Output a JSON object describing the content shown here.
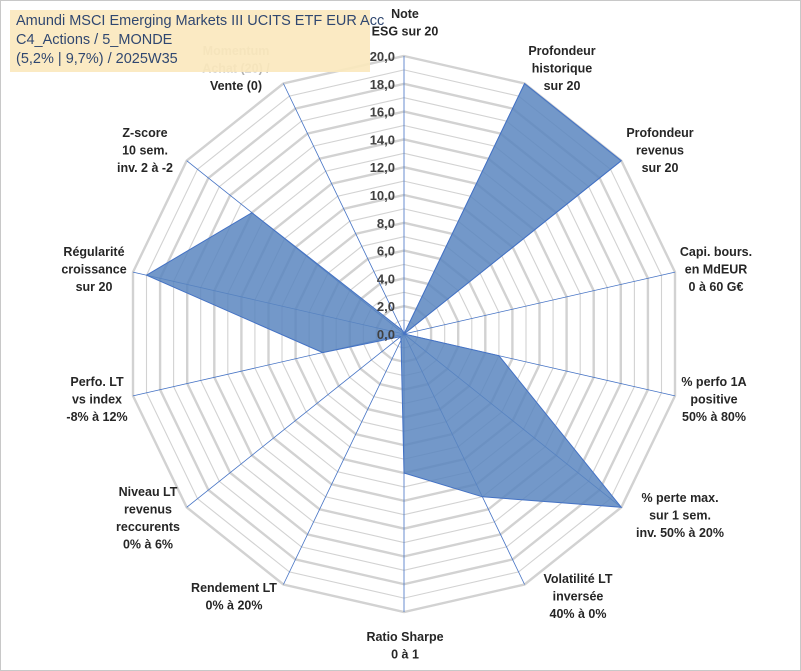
{
  "info": {
    "line1": "Amundi MSCI Emerging Markets III UCITS ETF EUR Acc",
    "line2": "C4_Actions / 5_MONDE",
    "line3": "(5,2% | 9,7%) / 2025W35"
  },
  "chart_data": {
    "type": "radar",
    "rmin": 0,
    "rmax": 20,
    "tick_step": 2,
    "tick_labels": [
      "0,0",
      "2,0",
      "4,0",
      "6,0",
      "8,0",
      "10,0",
      "12,0",
      "14,0",
      "16,0",
      "18,0",
      "20,0"
    ],
    "axes": [
      {
        "label": [
          "Note",
          "ESG sur 20"
        ]
      },
      {
        "label": [
          "Profondeur",
          "historique",
          "sur 20"
        ]
      },
      {
        "label": [
          "Profondeur",
          "revenus",
          "sur 20"
        ]
      },
      {
        "label": [
          "Capi. bours.",
          "en MdEUR",
          "0 à 60 G€"
        ]
      },
      {
        "label": [
          "% perfo 1A",
          "positive",
          "50% à 80%"
        ]
      },
      {
        "label": [
          "% perte max.",
          "sur 1 sem.",
          "inv. 50% à 20%"
        ]
      },
      {
        "label": [
          "Volatilité LT",
          "inversée",
          "40% à 0%"
        ]
      },
      {
        "label": [
          "Ratio Sharpe",
          "0 à 1"
        ]
      },
      {
        "label": [
          "Rendement LT",
          "0% à 20%"
        ]
      },
      {
        "label": [
          "Niveau LT",
          "revenus",
          "reccurents",
          "0% à 6%"
        ]
      },
      {
        "label": [
          "Perfo. LT",
          "vs index",
          "-8% à 12%"
        ]
      },
      {
        "label": [
          "Régularité",
          "croissance",
          "sur 20"
        ]
      },
      {
        "label": [
          "Z-score",
          "10 sem.",
          "inv. 2 à -2"
        ]
      },
      {
        "label": [
          "Momentum",
          "Achat (20) /",
          "Vente (0)"
        ]
      }
    ],
    "series": [
      {
        "values": [
          0,
          20,
          20,
          0,
          7,
          20,
          13,
          10,
          0.5,
          0.3,
          6,
          19,
          14,
          0.3
        ],
        "fill": "#5b86c0",
        "stroke": "#4472c4"
      }
    ],
    "grid": true,
    "grid_color": "#d2d2d2",
    "spoke_color": "#4472c4",
    "info_box_color": "#fbe9be",
    "text_color": "#1f3864"
  }
}
